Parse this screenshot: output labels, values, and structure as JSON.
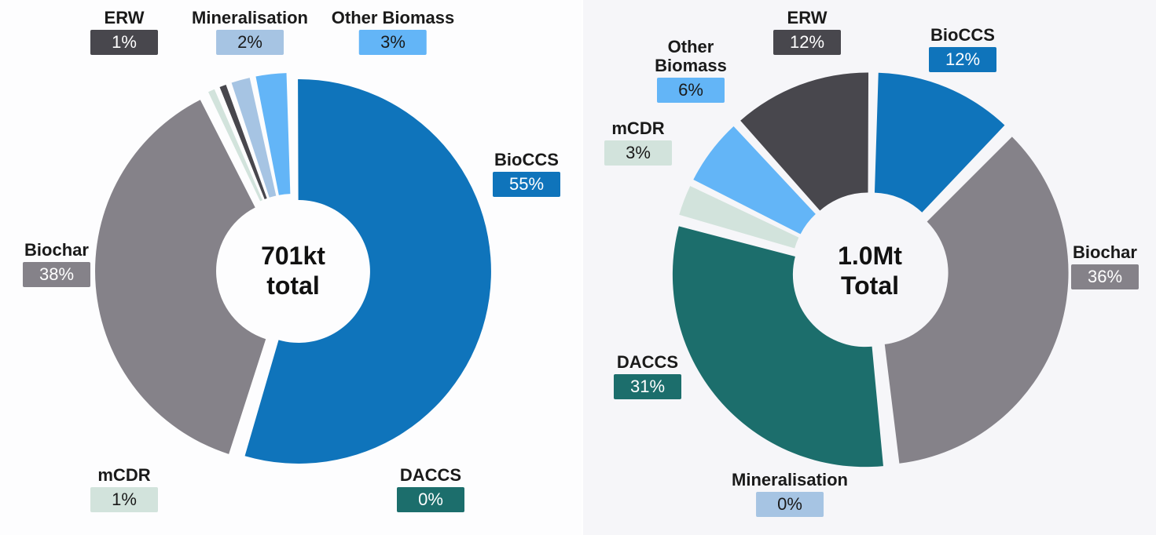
{
  "colors": {
    "BioCCS": "#0f74bb",
    "Biochar": "#858289",
    "DACCS": "#1c6e6c",
    "mCDR": "#d2e3dc",
    "ERW": "#48474d",
    "Mineralisation": "#a6c4e3",
    "Other Biomass": "#63b5f7"
  },
  "chart_data": [
    {
      "type": "pie",
      "title": "701kt total",
      "center_lines": [
        "701kt",
        "total"
      ],
      "slices": [
        {
          "label": "BioCCS",
          "value": 55,
          "display": "55%"
        },
        {
          "label": "DACCS",
          "value": 0,
          "display": "0%"
        },
        {
          "label": "Biochar",
          "value": 38,
          "display": "38%"
        },
        {
          "label": "mCDR",
          "value": 1,
          "display": "1%"
        },
        {
          "label": "ERW",
          "value": 1,
          "display": "1%"
        },
        {
          "label": "Mineralisation",
          "value": 2,
          "display": "2%"
        },
        {
          "label": "Other Biomass",
          "value": 3,
          "display": "3%"
        }
      ]
    },
    {
      "type": "pie",
      "title": "1.0Mt Total",
      "center_lines": [
        "1.0Mt",
        "Total"
      ],
      "slices": [
        {
          "label": "BioCCS",
          "value": 12,
          "display": "12%"
        },
        {
          "label": "Biochar",
          "value": 36,
          "display": "36%"
        },
        {
          "label": "Mineralisation",
          "value": 0,
          "display": "0%"
        },
        {
          "label": "DACCS",
          "value": 31,
          "display": "31%"
        },
        {
          "label": "mCDR",
          "value": 3,
          "display": "3%"
        },
        {
          "label": "Other Biomass",
          "value": 6,
          "display": "6%"
        },
        {
          "label": "ERW",
          "value": 12,
          "display": "12%"
        }
      ]
    }
  ]
}
